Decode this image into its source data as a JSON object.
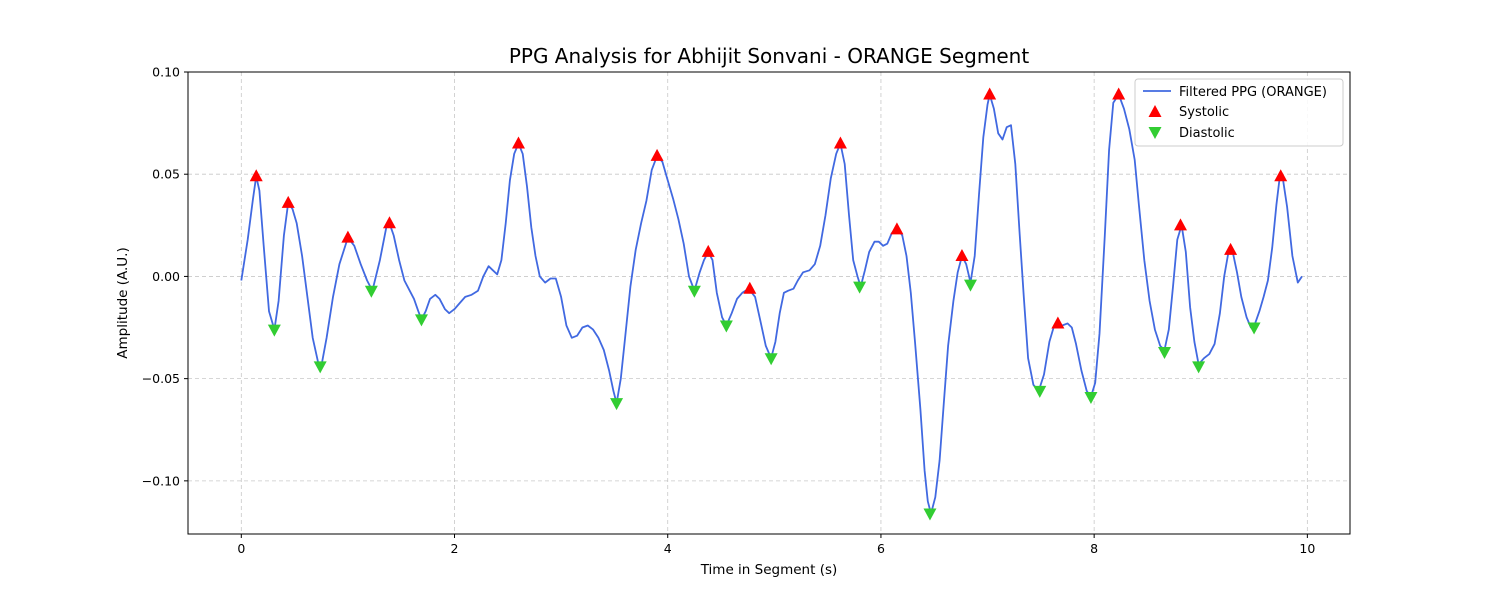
{
  "chart_data": {
    "type": "line",
    "title": "PPG Analysis for Abhijit Sonvani - ORANGE Segment",
    "xlabel": "Time in Segment (s)",
    "ylabel": "Amplitude (A.U.)",
    "xlim": [
      -0.5,
      10.4
    ],
    "ylim": [
      -0.126,
      0.1
    ],
    "xticks": [
      0,
      2,
      4,
      6,
      8,
      10
    ],
    "xtick_labels": [
      "0",
      "2",
      "4",
      "6",
      "8",
      "10"
    ],
    "yticks": [
      -0.1,
      -0.05,
      0.0,
      0.05,
      0.1
    ],
    "ytick_labels": [
      "−0.10",
      "−0.05",
      "0.00",
      "0.05",
      "0.10"
    ],
    "grid": true,
    "legend_position": "top-right",
    "colors": {
      "line": "#4169e1",
      "systolic": "#ff0000",
      "diastolic": "#32cd32"
    },
    "series": [
      {
        "name": "Filtered PPG (ORANGE)",
        "kind": "line",
        "points": [
          [
            0.0,
            -0.002
          ],
          [
            0.06,
            0.018
          ],
          [
            0.11,
            0.038
          ],
          [
            0.14,
            0.049
          ],
          [
            0.17,
            0.042
          ],
          [
            0.21,
            0.015
          ],
          [
            0.26,
            -0.017
          ],
          [
            0.31,
            -0.026
          ],
          [
            0.35,
            -0.012
          ],
          [
            0.4,
            0.02
          ],
          [
            0.44,
            0.036
          ],
          [
            0.48,
            0.033
          ],
          [
            0.52,
            0.026
          ],
          [
            0.57,
            0.01
          ],
          [
            0.62,
            -0.01
          ],
          [
            0.67,
            -0.03
          ],
          [
            0.72,
            -0.042
          ],
          [
            0.75,
            -0.044
          ],
          [
            0.8,
            -0.03
          ],
          [
            0.86,
            -0.01
          ],
          [
            0.92,
            0.006
          ],
          [
            1.0,
            0.019
          ],
          [
            1.06,
            0.015
          ],
          [
            1.12,
            0.006
          ],
          [
            1.18,
            -0.002
          ],
          [
            1.23,
            -0.007
          ],
          [
            1.3,
            0.008
          ],
          [
            1.36,
            0.024
          ],
          [
            1.39,
            0.026
          ],
          [
            1.43,
            0.02
          ],
          [
            1.48,
            0.008
          ],
          [
            1.53,
            -0.002
          ],
          [
            1.58,
            -0.007
          ],
          [
            1.62,
            -0.011
          ],
          [
            1.66,
            -0.017
          ],
          [
            1.69,
            -0.021
          ],
          [
            1.73,
            -0.017
          ],
          [
            1.77,
            -0.011
          ],
          [
            1.82,
            -0.009
          ],
          [
            1.86,
            -0.011
          ],
          [
            1.91,
            -0.016
          ],
          [
            1.95,
            -0.018
          ],
          [
            2.0,
            -0.016
          ],
          [
            2.05,
            -0.013
          ],
          [
            2.1,
            -0.01
          ],
          [
            2.16,
            -0.009
          ],
          [
            2.22,
            -0.007
          ],
          [
            2.27,
            0.0
          ],
          [
            2.32,
            0.005
          ],
          [
            2.36,
            0.003
          ],
          [
            2.4,
            0.001
          ],
          [
            2.44,
            0.008
          ],
          [
            2.48,
            0.026
          ],
          [
            2.52,
            0.047
          ],
          [
            2.56,
            0.06
          ],
          [
            2.6,
            0.065
          ],
          [
            2.64,
            0.06
          ],
          [
            2.68,
            0.044
          ],
          [
            2.72,
            0.024
          ],
          [
            2.76,
            0.01
          ],
          [
            2.8,
            0.0
          ],
          [
            2.85,
            -0.003
          ],
          [
            2.9,
            -0.001
          ],
          [
            2.95,
            -0.001
          ],
          [
            3.0,
            -0.01
          ],
          [
            3.05,
            -0.024
          ],
          [
            3.1,
            -0.03
          ],
          [
            3.15,
            -0.029
          ],
          [
            3.2,
            -0.025
          ],
          [
            3.25,
            -0.024
          ],
          [
            3.3,
            -0.026
          ],
          [
            3.35,
            -0.03
          ],
          [
            3.4,
            -0.036
          ],
          [
            3.45,
            -0.046
          ],
          [
            3.49,
            -0.056
          ],
          [
            3.52,
            -0.062
          ],
          [
            3.56,
            -0.05
          ],
          [
            3.6,
            -0.03
          ],
          [
            3.65,
            -0.005
          ],
          [
            3.7,
            0.013
          ],
          [
            3.75,
            0.026
          ],
          [
            3.8,
            0.037
          ],
          [
            3.85,
            0.052
          ],
          [
            3.9,
            0.059
          ],
          [
            3.95,
            0.056
          ],
          [
            4.0,
            0.047
          ],
          [
            4.05,
            0.038
          ],
          [
            4.1,
            0.028
          ],
          [
            4.15,
            0.016
          ],
          [
            4.2,
            0.0
          ],
          [
            4.25,
            -0.007
          ],
          [
            4.3,
            0.002
          ],
          [
            4.34,
            0.008
          ],
          [
            4.38,
            0.012
          ],
          [
            4.42,
            0.008
          ],
          [
            4.46,
            -0.008
          ],
          [
            4.51,
            -0.02
          ],
          [
            4.55,
            -0.024
          ],
          [
            4.6,
            -0.018
          ],
          [
            4.65,
            -0.011
          ],
          [
            4.7,
            -0.008
          ],
          [
            4.76,
            -0.006
          ],
          [
            4.82,
            -0.01
          ],
          [
            4.87,
            -0.022
          ],
          [
            4.92,
            -0.034
          ],
          [
            4.97,
            -0.04
          ],
          [
            5.01,
            -0.032
          ],
          [
            5.05,
            -0.018
          ],
          [
            5.09,
            -0.008
          ],
          [
            5.13,
            -0.007
          ],
          [
            5.18,
            -0.006
          ],
          [
            5.22,
            -0.002
          ],
          [
            5.27,
            0.002
          ],
          [
            5.33,
            0.003
          ],
          [
            5.38,
            0.006
          ],
          [
            5.43,
            0.015
          ],
          [
            5.48,
            0.03
          ],
          [
            5.53,
            0.048
          ],
          [
            5.58,
            0.06
          ],
          [
            5.62,
            0.065
          ],
          [
            5.66,
            0.055
          ],
          [
            5.7,
            0.03
          ],
          [
            5.74,
            0.008
          ],
          [
            5.78,
            0.0
          ],
          [
            5.81,
            -0.005
          ],
          [
            5.85,
            0.003
          ],
          [
            5.89,
            0.012
          ],
          [
            5.94,
            0.017
          ],
          [
            5.98,
            0.017
          ],
          [
            6.02,
            0.015
          ],
          [
            6.06,
            0.016
          ],
          [
            6.1,
            0.021
          ],
          [
            6.15,
            0.024
          ],
          [
            6.2,
            0.02
          ],
          [
            6.24,
            0.01
          ],
          [
            6.28,
            -0.008
          ],
          [
            6.32,
            -0.032
          ],
          [
            6.37,
            -0.065
          ],
          [
            6.41,
            -0.095
          ],
          [
            6.44,
            -0.11
          ],
          [
            6.47,
            -0.116
          ],
          [
            6.51,
            -0.108
          ],
          [
            6.55,
            -0.09
          ],
          [
            6.59,
            -0.062
          ],
          [
            6.63,
            -0.034
          ],
          [
            6.68,
            -0.012
          ],
          [
            6.72,
            0.002
          ],
          [
            6.76,
            0.01
          ],
          [
            6.8,
            0.006
          ],
          [
            6.84,
            -0.003
          ],
          [
            6.88,
            0.01
          ],
          [
            6.92,
            0.04
          ],
          [
            6.96,
            0.068
          ],
          [
            7.0,
            0.084
          ],
          [
            7.02,
            0.089
          ],
          [
            7.06,
            0.082
          ],
          [
            7.1,
            0.07
          ],
          [
            7.14,
            0.067
          ],
          [
            7.18,
            0.073
          ],
          [
            7.22,
            0.074
          ],
          [
            7.26,
            0.055
          ],
          [
            7.3,
            0.022
          ],
          [
            7.34,
            -0.01
          ],
          [
            7.38,
            -0.04
          ],
          [
            7.43,
            -0.053
          ],
          [
            7.48,
            -0.056
          ],
          [
            7.53,
            -0.048
          ],
          [
            7.58,
            -0.032
          ],
          [
            7.62,
            -0.025
          ],
          [
            7.66,
            -0.023
          ],
          [
            7.7,
            -0.024
          ],
          [
            7.75,
            -0.023
          ],
          [
            7.79,
            -0.025
          ],
          [
            7.83,
            -0.033
          ],
          [
            7.88,
            -0.046
          ],
          [
            7.93,
            -0.056
          ],
          [
            7.97,
            -0.059
          ],
          [
            8.01,
            -0.052
          ],
          [
            8.05,
            -0.028
          ],
          [
            8.1,
            0.02
          ],
          [
            8.14,
            0.062
          ],
          [
            8.18,
            0.085
          ],
          [
            8.23,
            0.089
          ],
          [
            8.28,
            0.082
          ],
          [
            8.33,
            0.072
          ],
          [
            8.38,
            0.057
          ],
          [
            8.42,
            0.035
          ],
          [
            8.47,
            0.008
          ],
          [
            8.52,
            -0.012
          ],
          [
            8.57,
            -0.026
          ],
          [
            8.62,
            -0.034
          ],
          [
            8.66,
            -0.036
          ],
          [
            8.7,
            -0.026
          ],
          [
            8.74,
            -0.005
          ],
          [
            8.78,
            0.018
          ],
          [
            8.82,
            0.025
          ],
          [
            8.86,
            0.012
          ],
          [
            8.9,
            -0.015
          ],
          [
            8.94,
            -0.032
          ],
          [
            8.98,
            -0.043
          ],
          [
            9.03,
            -0.04
          ],
          [
            9.08,
            -0.038
          ],
          [
            9.13,
            -0.033
          ],
          [
            9.18,
            -0.018
          ],
          [
            9.22,
            0.0
          ],
          [
            9.26,
            0.012
          ],
          [
            9.3,
            0.012
          ],
          [
            9.34,
            0.002
          ],
          [
            9.38,
            -0.01
          ],
          [
            9.43,
            -0.02
          ],
          [
            9.47,
            -0.025
          ],
          [
            9.51,
            -0.023
          ],
          [
            9.55,
            -0.017
          ],
          [
            9.59,
            -0.01
          ],
          [
            9.63,
            -0.002
          ],
          [
            9.67,
            0.014
          ],
          [
            9.71,
            0.035
          ],
          [
            9.74,
            0.048
          ],
          [
            9.77,
            0.048
          ],
          [
            9.81,
            0.034
          ],
          [
            9.86,
            0.01
          ],
          [
            9.91,
            -0.003
          ],
          [
            9.95,
            0.0
          ]
        ]
      },
      {
        "name": "Systolic",
        "kind": "marker-up",
        "points": [
          [
            0.14,
            0.049
          ],
          [
            0.44,
            0.036
          ],
          [
            1.0,
            0.019
          ],
          [
            1.39,
            0.026
          ],
          [
            2.6,
            0.065
          ],
          [
            3.9,
            0.059
          ],
          [
            4.38,
            0.012
          ],
          [
            4.77,
            -0.006
          ],
          [
            5.62,
            0.065
          ],
          [
            6.15,
            0.023
          ],
          [
            6.76,
            0.01
          ],
          [
            7.02,
            0.089
          ],
          [
            7.66,
            -0.023
          ],
          [
            8.23,
            0.089
          ],
          [
            8.81,
            0.025
          ],
          [
            9.28,
            0.013
          ],
          [
            9.75,
            0.049
          ]
        ]
      },
      {
        "name": "Diastolic",
        "kind": "marker-down",
        "points": [
          [
            0.31,
            -0.026
          ],
          [
            0.74,
            -0.044
          ],
          [
            1.22,
            -0.007
          ],
          [
            1.69,
            -0.021
          ],
          [
            3.52,
            -0.062
          ],
          [
            4.25,
            -0.007
          ],
          [
            4.55,
            -0.024
          ],
          [
            4.97,
            -0.04
          ],
          [
            5.8,
            -0.005
          ],
          [
            6.46,
            -0.116
          ],
          [
            6.84,
            -0.004
          ],
          [
            7.49,
            -0.056
          ],
          [
            7.97,
            -0.059
          ],
          [
            8.66,
            -0.037
          ],
          [
            8.98,
            -0.044
          ],
          [
            9.5,
            -0.025
          ]
        ]
      }
    ]
  }
}
